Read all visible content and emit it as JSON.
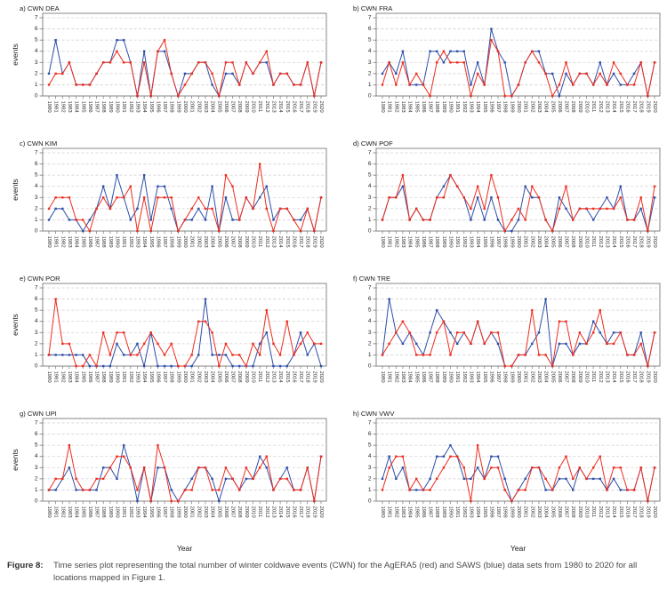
{
  "figure": {
    "caption_label": "Figure 8:",
    "caption_text": "Time series plot representing the total number of winter coldwave events (CWN) for the AgERA5 (red) and SAWS (blue) data sets from 1980 to 2020 for all locations mapped in Figure 1."
  },
  "colors": {
    "agera5_red": "#ed2d1f",
    "saws_blue": "#2d4fa8",
    "grid": "#cfcfcf",
    "axis_box": "#7a7a7a",
    "tick_text": "#2b2b2b",
    "title_text": "#1a1a1a"
  },
  "axes": {
    "ylabel": "events",
    "xlabel": "Year",
    "ylim": [
      0,
      7
    ],
    "yticks": [
      0,
      1,
      2,
      3,
      4,
      5,
      6,
      7
    ],
    "grid": "dashed horizontal",
    "years": [
      1980,
      1981,
      1982,
      1983,
      1984,
      1985,
      1986,
      1987,
      1988,
      1989,
      1990,
      1991,
      1992,
      1993,
      1994,
      1995,
      1996,
      1997,
      1998,
      1999,
      2000,
      2001,
      2002,
      2003,
      2004,
      2005,
      2006,
      2007,
      2008,
      2009,
      2010,
      2011,
      2012,
      2013,
      2014,
      2015,
      2016,
      2017,
      2018,
      2019,
      2020
    ]
  },
  "chart_data": [
    {
      "type": "line",
      "title": "a) CWN DEA",
      "series": [
        {
          "name": "AgERA5",
          "color_key": "agera5_red",
          "values": [
            1,
            2,
            2,
            3,
            1,
            1,
            1,
            2,
            3,
            3,
            4,
            3,
            3,
            0,
            3,
            0,
            4,
            5,
            2,
            0,
            1,
            2,
            3,
            3,
            2,
            0,
            3,
            3,
            1,
            3,
            2,
            3,
            4,
            1,
            2,
            2,
            1,
            1,
            3,
            0,
            3
          ]
        },
        {
          "name": "SAWS",
          "color_key": "saws_blue",
          "values": [
            2,
            5,
            2,
            3,
            1,
            1,
            1,
            2,
            3,
            3,
            5,
            5,
            3,
            0,
            4,
            0,
            4,
            4,
            2,
            0,
            2,
            2,
            3,
            3,
            1,
            0,
            2,
            2,
            1,
            3,
            2,
            3,
            3,
            1,
            2,
            2,
            1,
            1,
            3,
            0,
            3
          ]
        }
      ]
    },
    {
      "type": "line",
      "title": "b) CWN FRA",
      "series": [
        {
          "name": "AgERA5",
          "color_key": "agera5_red",
          "values": [
            1,
            3,
            1,
            3,
            1,
            2,
            1,
            0,
            3,
            4,
            3,
            3,
            3,
            0,
            2,
            1,
            5,
            4,
            0,
            0,
            1,
            3,
            4,
            3,
            2,
            0,
            1,
            3,
            1,
            2,
            2,
            1,
            2,
            1,
            3,
            2,
            1,
            1,
            3,
            0,
            3
          ]
        },
        {
          "name": "SAWS",
          "color_key": "saws_blue",
          "values": [
            2,
            3,
            2,
            4,
            1,
            1,
            1,
            4,
            4,
            3,
            4,
            4,
            4,
            1,
            3,
            1,
            6,
            4,
            3,
            0,
            1,
            3,
            4,
            4,
            2,
            2,
            0,
            2,
            1,
            2,
            2,
            1,
            3,
            1,
            2,
            1,
            1,
            2,
            3,
            0,
            3
          ]
        }
      ]
    },
    {
      "type": "line",
      "title": "c) CWN KIM",
      "series": [
        {
          "name": "AgERA5",
          "color_key": "agera5_red",
          "values": [
            2,
            3,
            3,
            3,
            1,
            1,
            0,
            2,
            3,
            2,
            3,
            3,
            4,
            0,
            3,
            0,
            3,
            3,
            3,
            0,
            1,
            2,
            3,
            2,
            2,
            0,
            5,
            4,
            1,
            3,
            2,
            6,
            2,
            0,
            2,
            2,
            1,
            0,
            2,
            0,
            3
          ]
        },
        {
          "name": "SAWS",
          "color_key": "saws_blue",
          "values": [
            1,
            2,
            2,
            1,
            1,
            0,
            1,
            2,
            4,
            2,
            5,
            3,
            1,
            2,
            5,
            1,
            4,
            4,
            2,
            0,
            1,
            1,
            2,
            1,
            4,
            0,
            3,
            1,
            1,
            3,
            2,
            3,
            4,
            1,
            2,
            2,
            1,
            1,
            2,
            0,
            3
          ]
        }
      ]
    },
    {
      "type": "line",
      "title": "d) CWN POF",
      "series": [
        {
          "name": "AgERA5",
          "color_key": "agera5_red",
          "values": [
            1,
            3,
            3,
            5,
            1,
            2,
            1,
            1,
            3,
            3,
            5,
            4,
            3,
            2,
            4,
            2,
            5,
            3,
            0,
            1,
            2,
            1,
            4,
            3,
            1,
            0,
            2,
            4,
            1,
            2,
            2,
            2,
            2,
            2,
            2,
            3,
            1,
            1,
            3,
            0,
            4
          ]
        },
        {
          "name": "SAWS",
          "color_key": "saws_blue",
          "values": [
            1,
            3,
            3,
            4,
            1,
            2,
            1,
            1,
            3,
            4,
            5,
            4,
            3,
            1,
            3,
            1,
            3,
            1,
            0,
            0,
            1,
            4,
            3,
            3,
            1,
            0,
            3,
            2,
            1,
            2,
            2,
            1,
            2,
            3,
            2,
            4,
            1,
            1,
            2,
            0,
            3
          ]
        }
      ]
    },
    {
      "type": "line",
      "title": "e) CWN POR",
      "series": [
        {
          "name": "AgERA5",
          "color_key": "agera5_red",
          "values": [
            1,
            6,
            2,
            2,
            0,
            0,
            1,
            0,
            3,
            1,
            3,
            3,
            1,
            1,
            2,
            3,
            2,
            1,
            2,
            0,
            0,
            1,
            4,
            4,
            3,
            0,
            2,
            1,
            1,
            0,
            2,
            1,
            5,
            2,
            1,
            4,
            1,
            2,
            3,
            2,
            2
          ]
        },
        {
          "name": "SAWS",
          "color_key": "saws_blue",
          "values": [
            1,
            1,
            1,
            1,
            1,
            1,
            0,
            0,
            0,
            0,
            2,
            1,
            1,
            2,
            0,
            3,
            0,
            0,
            0,
            0,
            0,
            0,
            1,
            6,
            1,
            1,
            1,
            0,
            0,
            0,
            0,
            2,
            3,
            0,
            0,
            0,
            1,
            3,
            1,
            2,
            0
          ]
        }
      ]
    },
    {
      "type": "line",
      "title": "f) CWN TRE",
      "series": [
        {
          "name": "AgERA5",
          "color_key": "agera5_red",
          "values": [
            1,
            2,
            3,
            4,
            3,
            1,
            1,
            1,
            3,
            4,
            1,
            3,
            3,
            2,
            4,
            2,
            3,
            3,
            0,
            0,
            1,
            1,
            5,
            1,
            1,
            0,
            4,
            4,
            1,
            3,
            2,
            3,
            5,
            2,
            2,
            3,
            1,
            1,
            2,
            0,
            3
          ]
        },
        {
          "name": "SAWS",
          "color_key": "saws_blue",
          "values": [
            1,
            6,
            3,
            2,
            3,
            2,
            1,
            3,
            5,
            4,
            3,
            2,
            3,
            2,
            4,
            2,
            3,
            2,
            0,
            0,
            1,
            1,
            2,
            3,
            6,
            0,
            2,
            2,
            1,
            2,
            2,
            4,
            3,
            2,
            3,
            3,
            1,
            1,
            3,
            0,
            3
          ]
        }
      ]
    },
    {
      "type": "line",
      "title": "g) CWN UPI",
      "series": [
        {
          "name": "AgERA5",
          "color_key": "agera5_red",
          "values": [
            1,
            2,
            2,
            5,
            2,
            1,
            1,
            2,
            2,
            3,
            4,
            4,
            3,
            1,
            3,
            0,
            5,
            3,
            0,
            0,
            1,
            1,
            3,
            3,
            1,
            1,
            3,
            2,
            1,
            3,
            2,
            3,
            4,
            1,
            2,
            2,
            1,
            1,
            3,
            0,
            4
          ]
        },
        {
          "name": "SAWS",
          "color_key": "saws_blue",
          "values": [
            1,
            1,
            2,
            3,
            1,
            1,
            1,
            1,
            3,
            3,
            2,
            5,
            3,
            0,
            3,
            0,
            3,
            3,
            1,
            0,
            1,
            2,
            3,
            3,
            2,
            0,
            2,
            2,
            1,
            2,
            2,
            4,
            3,
            1,
            2,
            3,
            1,
            1,
            3,
            0,
            4
          ]
        }
      ]
    },
    {
      "type": "line",
      "title": "h) CWN VWV",
      "series": [
        {
          "name": "AgERA5",
          "color_key": "agera5_red",
          "values": [
            1,
            3,
            4,
            4,
            1,
            2,
            1,
            1,
            2,
            3,
            4,
            4,
            3,
            0,
            5,
            2,
            3,
            3,
            1,
            0,
            1,
            1,
            3,
            3,
            2,
            1,
            3,
            4,
            2,
            3,
            2,
            3,
            4,
            1,
            3,
            3,
            1,
            1,
            3,
            0,
            3
          ]
        },
        {
          "name": "SAWS",
          "color_key": "saws_blue",
          "values": [
            2,
            4,
            2,
            3,
            1,
            1,
            1,
            2,
            4,
            4,
            5,
            4,
            2,
            2,
            3,
            2,
            4,
            4,
            2,
            0,
            1,
            2,
            3,
            3,
            1,
            1,
            2,
            2,
            1,
            3,
            2,
            2,
            2,
            1,
            2,
            1,
            1,
            1,
            3,
            0,
            3
          ]
        }
      ]
    }
  ]
}
